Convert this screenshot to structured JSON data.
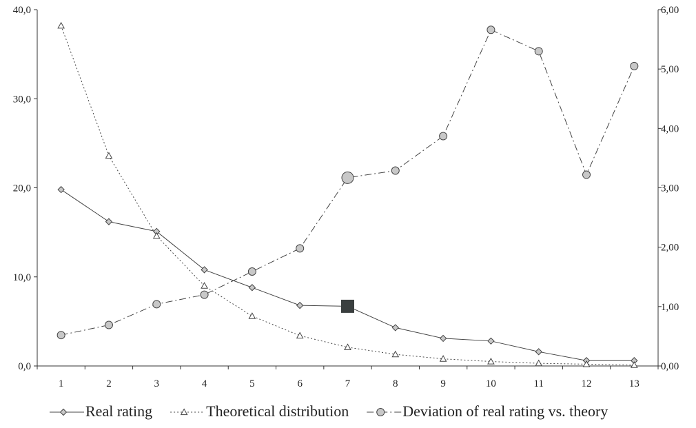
{
  "chart_data": {
    "type": "line",
    "title": "",
    "xlabel": "",
    "ylabel_left": "",
    "ylabel_right": "",
    "categories": [
      "1",
      "2",
      "3",
      "4",
      "5",
      "6",
      "7",
      "8",
      "9",
      "10",
      "11",
      "12",
      "13"
    ],
    "y_left": {
      "min": 0,
      "max": 40,
      "ticks": [
        "0,0",
        "10,0",
        "20,0",
        "30,0",
        "40,0"
      ]
    },
    "y_right": {
      "min": 0,
      "max": 6,
      "ticks": [
        "0,00",
        "1,00",
        "2,00",
        "3,00",
        "4,00",
        "5,00",
        "6,00"
      ]
    },
    "grid": false,
    "legend_position": "bottom",
    "series": [
      {
        "name": "Real rating",
        "axis": "left",
        "marker": "diamond",
        "line": "solid",
        "color": "#444444",
        "values": [
          19.8,
          16.2,
          15.1,
          10.8,
          8.8,
          6.8,
          6.7,
          4.3,
          3.1,
          2.8,
          1.6,
          0.6,
          0.6
        ],
        "highlight_index": 6
      },
      {
        "name": "Theoretical distribution",
        "axis": "left",
        "marker": "triangle",
        "line": "dotted",
        "color": "#444444",
        "values": [
          38.2,
          23.6,
          14.6,
          9.0,
          5.6,
          3.4,
          2.1,
          1.3,
          0.8,
          0.5,
          0.3,
          0.2,
          0.1
        ]
      },
      {
        "name": "Deviation of real rating vs. theory",
        "axis": "right",
        "marker": "circle",
        "line": "dashdot",
        "color": "#444444",
        "values": [
          0.52,
          0.69,
          1.04,
          1.2,
          1.59,
          1.98,
          3.17,
          3.29,
          3.87,
          5.66,
          5.3,
          3.22,
          5.05
        ],
        "highlight_index": 6
      }
    ],
    "colors": {
      "line": "#444444",
      "marker_fill": "#c8c8c8",
      "highlight": "#3a3f3f"
    }
  }
}
